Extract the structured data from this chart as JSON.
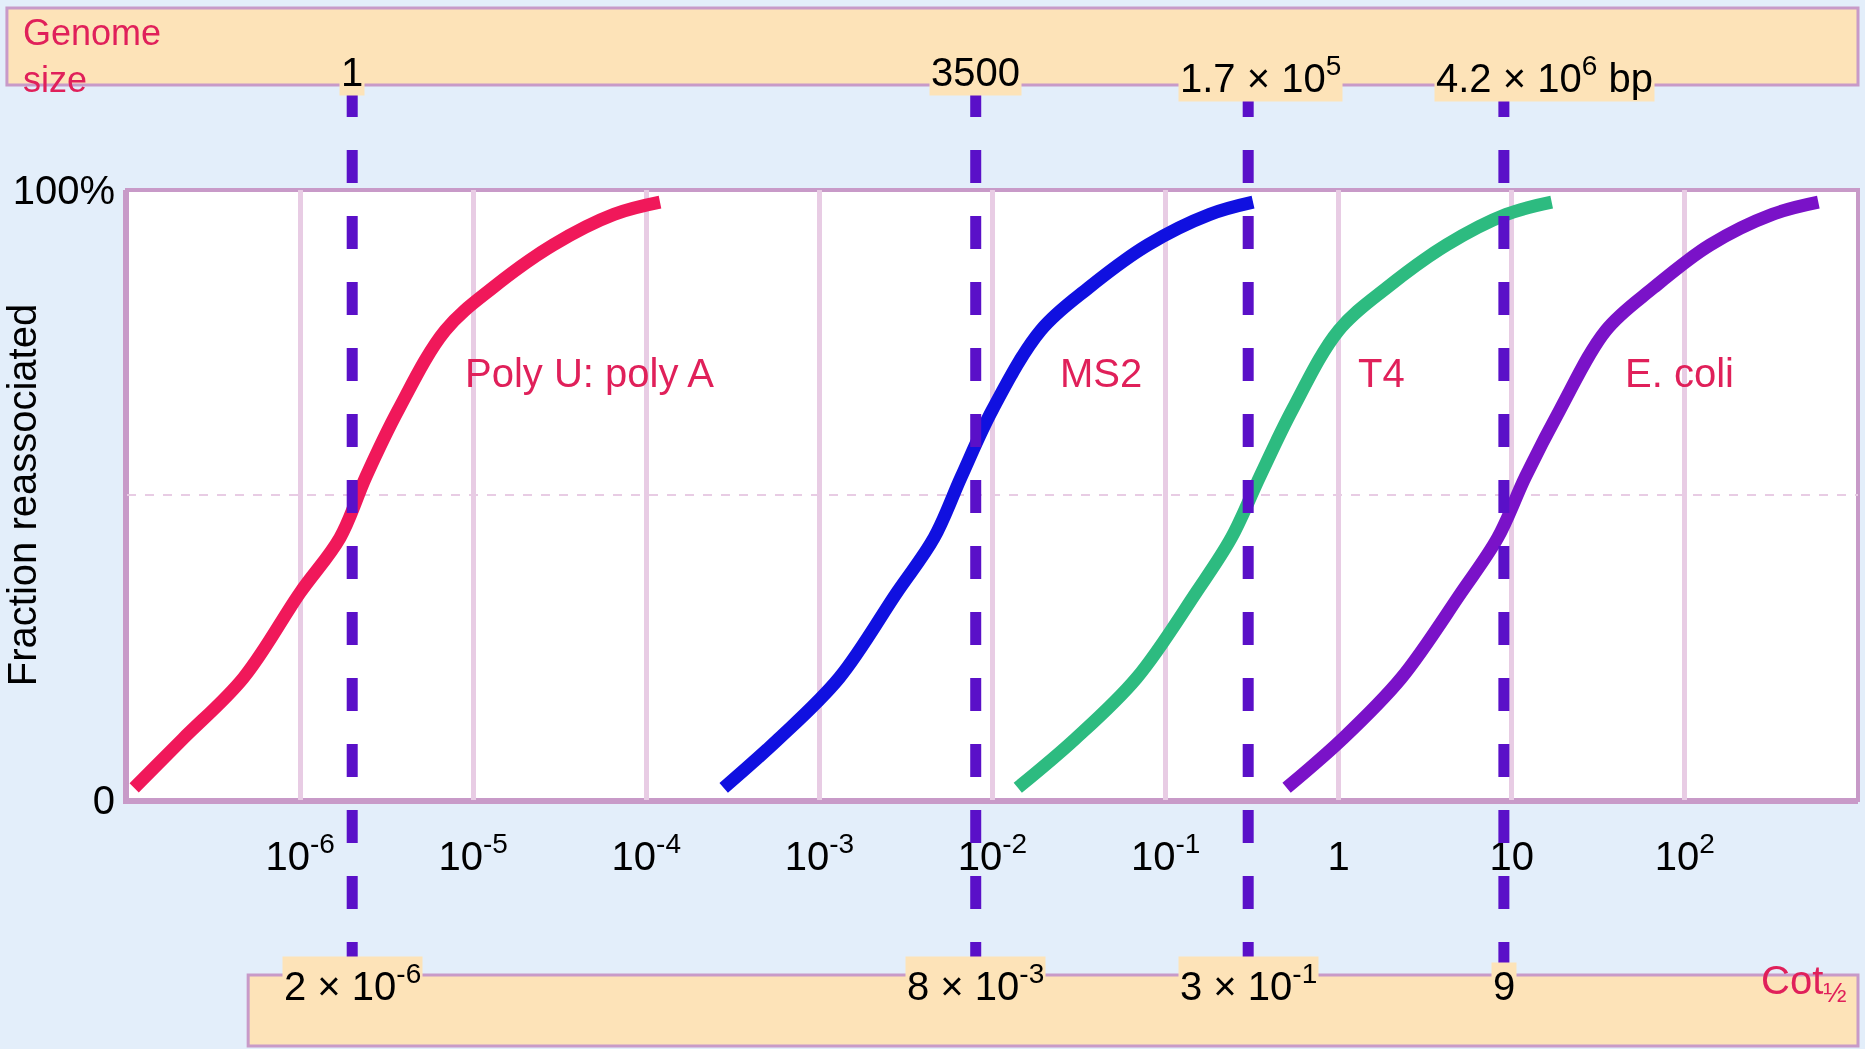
{
  "chart_data": {
    "type": "line",
    "ylabel": "Fraction reassociated",
    "log": "x",
    "xlim": [
      1e-07,
      1000
    ],
    "ylim": [
      0,
      100
    ],
    "xticks": [
      {
        "value": 1e-06,
        "label": "10$^{-6}$"
      },
      {
        "value": 1e-05,
        "label": "10$^{-5}$"
      },
      {
        "value": 0.0001,
        "label": "10$^{-4}$"
      },
      {
        "value": 0.001,
        "label": "10$^{-3}$"
      },
      {
        "value": 0.01,
        "label": "10$^{-2}$"
      },
      {
        "value": 0.1,
        "label": "10$^{-1}$"
      },
      1,
      10,
      {
        "value": 100,
        "label": "10$^{2}$"
      }
    ],
    "yticks": [
      0,
      {
        "value": 100,
        "label": "100%"
      }
    ],
    "grid": true,
    "line_style": "solid",
    "marker": "none",
    "series": [
      {
        "name": "Poly U: poly A",
        "color": "#f0185a",
        "x": [
          1.1e-07,
          2.1e-07,
          4.7e-07,
          1e-06,
          1.7e-06,
          2.4e-06,
          3.7e-06,
          6.9e-06,
          1.3e-05,
          2.9e-05,
          6.5e-05,
          0.00012
        ],
        "values": [
          2,
          10,
          20,
          34,
          43,
          53,
          64,
          77,
          84,
          91,
          96,
          98
        ]
      },
      {
        "name": "MS2",
        "color": "#1010e0",
        "x": [
          0.00028,
          0.00058,
          0.0013,
          0.0028,
          0.0046,
          0.0066,
          0.01,
          0.019,
          0.036,
          0.079,
          0.18,
          0.32
        ],
        "values": [
          2,
          10,
          20,
          34,
          43,
          53,
          64,
          77,
          84,
          91,
          96,
          98
        ]
      },
      {
        "name": "T4",
        "color": "#2dbb80",
        "x": [
          0.014,
          0.03,
          0.068,
          0.15,
          0.24,
          0.35,
          0.54,
          1.0,
          1.9,
          4.2,
          9.3,
          17
        ],
        "values": [
          2,
          10,
          20,
          34,
          43,
          53,
          64,
          77,
          84,
          91,
          96,
          98
        ]
      },
      {
        "name": "E. coli",
        "color": "#7a12c8",
        "x": [
          0.5,
          1.05,
          2.3,
          5.1,
          8.3,
          12,
          19,
          35,
          66,
          140,
          320,
          590
        ],
        "values": [
          2,
          10,
          20,
          34,
          43,
          53,
          64,
          77,
          84,
          91,
          96,
          98
        ]
      }
    ],
    "ref_lines": [
      {
        "axis": "x",
        "value": 2e-06,
        "label": "2 × 10$^{-6}$",
        "color": "#5a10c8",
        "line_style": "dashed"
      },
      {
        "axis": "x",
        "value": 0.008,
        "label": "8 × 10$^{-3}$",
        "color": "#5a10c8",
        "line_style": "dashed"
      },
      {
        "axis": "x",
        "value": 0.3,
        "label": "3 × 10$^{-1}$",
        "color": "#5a10c8",
        "line_style": "dashed"
      },
      {
        "axis": "x",
        "value": 9,
        "label": "9",
        "color": "#5a10c8",
        "line_style": "dashed"
      },
      {
        "axis": "y",
        "value": 50,
        "color": "#e8cce4",
        "line_style": "dashed"
      }
    ],
    "annotations": [
      "Genome size",
      "1",
      "3500",
      "1.7 × 10$^{5}$",
      "4.2 × 10$^{6}$ bp",
      "Cot$_{½}$"
    ]
  }
}
